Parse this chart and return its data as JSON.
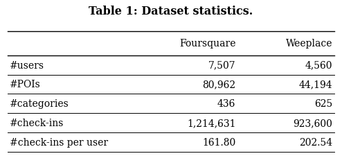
{
  "title": "Table 1: Dataset statistics.",
  "col_headers": [
    "",
    "Foursquare",
    "Weeplace"
  ],
  "rows": [
    [
      "#users",
      "7,507",
      "4,560"
    ],
    [
      "#POIs",
      "80,962",
      "44,194"
    ],
    [
      "#categories",
      "436",
      "625"
    ],
    [
      "#check-ins",
      "1,214,631",
      "923,600"
    ],
    [
      "#check-ins per user",
      "161.80",
      "202.54"
    ]
  ],
  "background_color": "#ffffff",
  "title_fontsize": 11.5,
  "header_fontsize": 10,
  "cell_fontsize": 10,
  "line_color": "#000000",
  "thick_lw": 1.0,
  "thin_lw": 0.7
}
